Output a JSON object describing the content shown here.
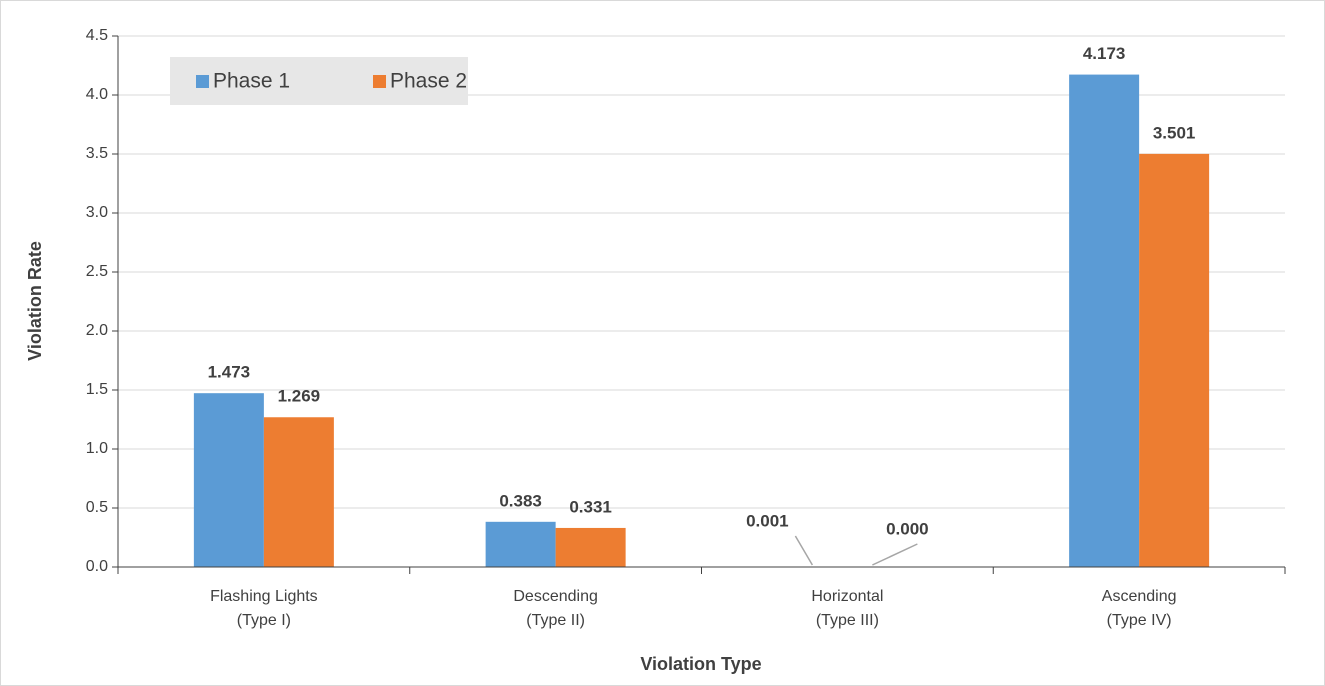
{
  "chart_data": {
    "type": "bar",
    "categories": [
      [
        "Flashing Lights",
        "(Type I)"
      ],
      [
        "Descending",
        "(Type II)"
      ],
      [
        "Horizontal",
        "(Type III)"
      ],
      [
        "Ascending",
        "(Type IV)"
      ]
    ],
    "series": [
      {
        "name": "Phase 1",
        "color": "#5b9bd5",
        "values": [
          1.473,
          0.383,
          0.001,
          4.173
        ],
        "value_labels": [
          "1.473",
          "0.383",
          "0.001",
          "4.173"
        ]
      },
      {
        "name": "Phase 2",
        "color": "#ed7d31",
        "values": [
          1.269,
          0.331,
          0,
          3.501
        ],
        "value_labels": [
          "1.269",
          "0.331",
          "0.000",
          "3.501"
        ]
      }
    ],
    "ylim": [
      0,
      4.5
    ],
    "yticks": [
      {
        "value": 0,
        "label": "0.0"
      },
      0.5,
      {
        "value": 1,
        "label": "1.0"
      },
      1.5,
      {
        "value": 2,
        "label": "2.0"
      },
      2.5,
      {
        "value": 3,
        "label": "3.0"
      },
      3.5,
      {
        "value": 4,
        "label": "4.0"
      },
      4.5
    ],
    "xlabel": "Violation Type",
    "ylabel": "Violation Rate",
    "grid": true,
    "legend": "upper left"
  }
}
